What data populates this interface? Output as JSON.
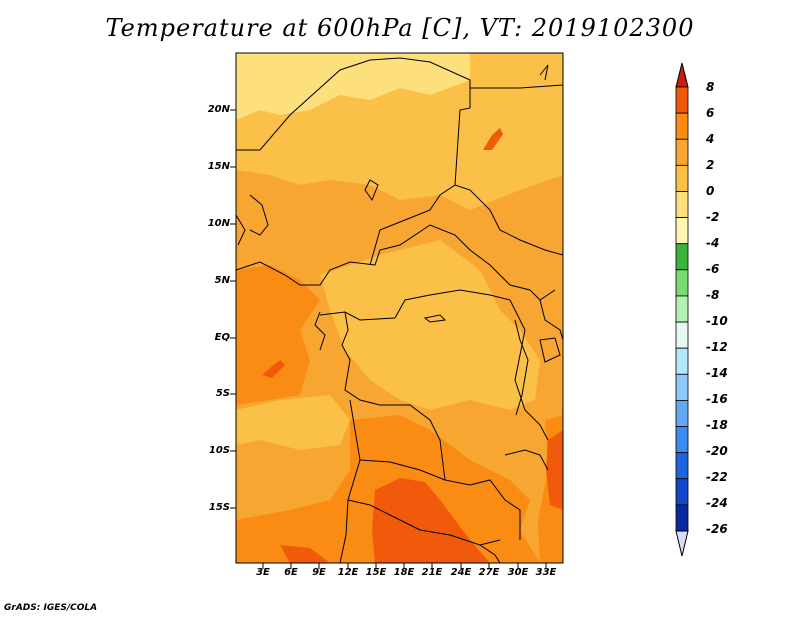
{
  "title": "Temperature at 600hPa [C], VT: 2019102300",
  "credit": "GrADS: IGES/COLA",
  "lat_ticks": [
    "20N",
    "15N",
    "10N",
    "5N",
    "EQ",
    "5S",
    "10S",
    "15S"
  ],
  "lon_ticks": [
    "3E",
    "6E",
    "9E",
    "12E",
    "15E",
    "18E",
    "21E",
    "24E",
    "27E",
    "30E",
    "33E"
  ],
  "colorbar": {
    "labels": [
      "8",
      "6",
      "4",
      "2",
      "0",
      "-2",
      "-4",
      "-6",
      "-8",
      "-10",
      "-12",
      "-14",
      "-16",
      "-18",
      "-20",
      "-22",
      "-24",
      "-26"
    ],
    "colors": [
      "#e83010",
      "#f05a0a",
      "#fa8c14",
      "#f7a632",
      "#fbc048",
      "#fde07c",
      "#fff5b4",
      "#3cb43c",
      "#78dc6e",
      "#b4f0b4",
      "#e6f8f0",
      "#b4e6fa",
      "#8cc8f8",
      "#64a8f0",
      "#3c8cf0",
      "#1e64dc",
      "#1448c8",
      "#0a28a0",
      "#081060"
    ],
    "top_arrow": "#c81e0a",
    "bottom_arrow": "#d7dcff"
  },
  "field_colors": {
    "c_2": "#fde07c",
    "c0": "#fbc048",
    "c2": "#f7a632",
    "c4": "#fa8c14",
    "c6": "#f05a0a"
  }
}
